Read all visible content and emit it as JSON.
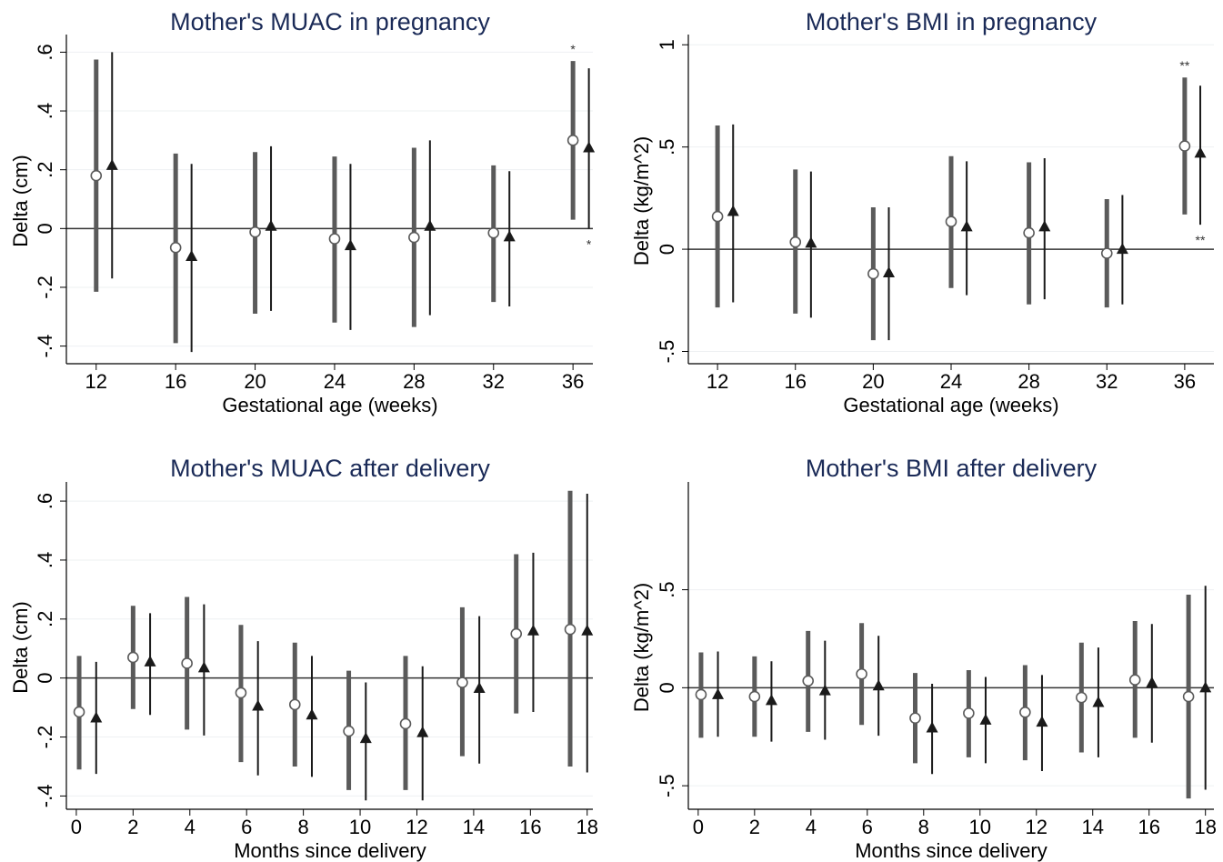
{
  "chart_data": [
    {
      "type": "errorbar",
      "title": "Mother's MUAC in pregnancy",
      "xlabel": "Gestational age (weeks)",
      "ylabel": "Delta (cm)",
      "xlim": [
        10.5,
        37
      ],
      "ylim": [
        -0.46,
        0.66
      ],
      "x_ticks": [
        12,
        16,
        20,
        24,
        28,
        32,
        36
      ],
      "x_tick_labels": [
        "12",
        "16",
        "20",
        "24",
        "28",
        "32",
        "36"
      ],
      "y_ticks": [
        -0.4,
        -0.2,
        0,
        0.2,
        0.4,
        0.6
      ],
      "y_tick_labels": [
        "-.4",
        "-.2",
        "0",
        ".2",
        ".4",
        ".6"
      ],
      "grid": true,
      "series": [
        {
          "marker": "hollow-circle",
          "x": [
            12,
            16,
            20,
            24,
            28,
            32,
            36
          ],
          "y": [
            0.18,
            -0.065,
            -0.012,
            -0.035,
            -0.03,
            -0.015,
            0.3
          ],
          "lo": [
            -0.215,
            -0.39,
            -0.29,
            -0.32,
            -0.335,
            -0.25,
            0.03
          ],
          "hi": [
            0.575,
            0.255,
            0.26,
            0.245,
            0.275,
            0.215,
            0.57
          ],
          "stars": [
            "",
            "",
            "",
            "",
            "",
            "",
            "*"
          ]
        },
        {
          "marker": "filled-triangle",
          "x": [
            12.8,
            16.8,
            20.8,
            24.8,
            28.8,
            32.8,
            36.8
          ],
          "y": [
            0.215,
            -0.095,
            0.008,
            -0.058,
            0.008,
            -0.028,
            0.275
          ],
          "lo": [
            -0.17,
            -0.42,
            -0.28,
            -0.345,
            -0.295,
            -0.265,
            0.0
          ],
          "hi": [
            0.6,
            0.22,
            0.28,
            0.22,
            0.3,
            0.195,
            0.545
          ],
          "stars": [
            "",
            "",
            "",
            "",
            "",
            "",
            "*"
          ]
        }
      ]
    },
    {
      "type": "errorbar",
      "title": "Mother's BMI in pregnancy",
      "xlabel": "Gestational age (weeks)",
      "ylabel": "Delta (kg/m^2)",
      "xlim": [
        10.5,
        37.5
      ],
      "ylim": [
        -0.56,
        1.05
      ],
      "x_ticks": [
        12,
        16,
        20,
        24,
        28,
        32,
        36
      ],
      "x_tick_labels": [
        "12",
        "16",
        "20",
        "24",
        "28",
        "32",
        "36"
      ],
      "y_ticks": [
        -0.5,
        0,
        0.5,
        1
      ],
      "y_tick_labels": [
        "-.5",
        "0",
        ".5",
        "1"
      ],
      "grid": true,
      "series": [
        {
          "marker": "hollow-circle",
          "x": [
            12,
            16,
            20,
            24,
            28,
            32,
            36
          ],
          "y": [
            0.16,
            0.035,
            -0.12,
            0.135,
            0.08,
            -0.02,
            0.505
          ],
          "lo": [
            -0.285,
            -0.315,
            -0.445,
            -0.19,
            -0.27,
            -0.285,
            0.17
          ],
          "hi": [
            0.605,
            0.39,
            0.205,
            0.455,
            0.425,
            0.245,
            0.84
          ],
          "stars": [
            "",
            "",
            "",
            "",
            "",
            "",
            "**"
          ]
        },
        {
          "marker": "filled-triangle",
          "x": [
            12.8,
            16.8,
            20.8,
            24.8,
            28.8,
            32.8,
            36.8
          ],
          "y": [
            0.185,
            0.03,
            -0.115,
            0.11,
            0.11,
            0.0,
            0.47
          ],
          "lo": [
            -0.26,
            -0.335,
            -0.445,
            -0.225,
            -0.245,
            -0.27,
            0.12
          ],
          "hi": [
            0.61,
            0.38,
            0.205,
            0.43,
            0.445,
            0.265,
            0.8
          ],
          "stars": [
            "",
            "",
            "",
            "",
            "",
            "",
            "**"
          ]
        }
      ]
    },
    {
      "type": "errorbar",
      "title": "Mother's MUAC after delivery",
      "xlabel": "Months since delivery",
      "ylabel": "Delta (cm)",
      "xlim": [
        -0.35,
        18.2
      ],
      "ylim": [
        -0.445,
        0.665
      ],
      "x_ticks": [
        0,
        2,
        4,
        6,
        8,
        10,
        12,
        14,
        16,
        18
      ],
      "x_tick_labels": [
        "0",
        "2",
        "4",
        "6",
        "8",
        "10",
        "12",
        "14",
        "16",
        "18"
      ],
      "y_ticks": [
        -0.4,
        -0.2,
        0,
        0.2,
        0.4,
        0.6
      ],
      "y_tick_labels": [
        "-.4",
        "-.2",
        "0",
        ".2",
        ".4",
        ".6"
      ],
      "grid": true,
      "series": [
        {
          "marker": "hollow-circle",
          "x": [
            0.1,
            2.0,
            3.9,
            5.8,
            7.7,
            9.6,
            11.6,
            13.6,
            15.5,
            17.4
          ],
          "y": [
            -0.115,
            0.07,
            0.05,
            -0.05,
            -0.09,
            -0.18,
            -0.155,
            -0.015,
            0.15,
            0.165
          ],
          "lo": [
            -0.31,
            -0.105,
            -0.175,
            -0.285,
            -0.3,
            -0.38,
            -0.38,
            -0.265,
            -0.12,
            -0.3
          ],
          "hi": [
            0.075,
            0.245,
            0.275,
            0.18,
            0.12,
            0.025,
            0.075,
            0.24,
            0.42,
            0.635
          ],
          "stars": [
            "",
            "",
            "",
            "",
            "",
            "",
            "",
            "",
            "",
            ""
          ]
        },
        {
          "marker": "filled-triangle",
          "x": [
            0.7,
            2.6,
            4.5,
            6.4,
            8.3,
            10.2,
            12.2,
            14.2,
            16.1,
            18.0
          ],
          "y": [
            -0.135,
            0.055,
            0.035,
            -0.095,
            -0.125,
            -0.205,
            -0.185,
            -0.035,
            0.16,
            0.16
          ],
          "lo": [
            -0.325,
            -0.125,
            -0.195,
            -0.33,
            -0.335,
            -0.415,
            -0.415,
            -0.29,
            -0.115,
            -0.32
          ],
          "hi": [
            0.055,
            0.22,
            0.25,
            0.125,
            0.075,
            -0.015,
            0.04,
            0.21,
            0.425,
            0.625
          ],
          "stars": [
            "",
            "",
            "",
            "",
            "",
            "",
            "",
            "",
            "",
            ""
          ]
        }
      ]
    },
    {
      "type": "errorbar",
      "title": "Mother's BMI after delivery",
      "xlabel": "Months since delivery",
      "ylabel": "Delta (kg/m^2)",
      "xlim": [
        -0.35,
        18.3
      ],
      "ylim": [
        -0.62,
        1.05
      ],
      "x_ticks": [
        0,
        2,
        4,
        6,
        8,
        10,
        12,
        14,
        16,
        18
      ],
      "x_tick_labels": [
        "0",
        "2",
        "4",
        "6",
        "8",
        "10",
        "12",
        "14",
        "16",
        "18"
      ],
      "y_ticks": [
        -0.5,
        0,
        0.5
      ],
      "y_tick_labels": [
        "-.5",
        "0",
        ".5"
      ],
      "grid": true,
      "series": [
        {
          "marker": "hollow-circle",
          "x": [
            0.1,
            2.0,
            3.9,
            5.8,
            7.7,
            9.6,
            11.6,
            13.6,
            15.5,
            17.4
          ],
          "y": [
            -0.035,
            -0.045,
            0.035,
            0.07,
            -0.155,
            -0.13,
            -0.125,
            -0.05,
            0.04,
            -0.045
          ],
          "lo": [
            -0.255,
            -0.25,
            -0.225,
            -0.19,
            -0.385,
            -0.355,
            -0.37,
            -0.33,
            -0.255,
            -0.565
          ],
          "hi": [
            0.18,
            0.16,
            0.29,
            0.33,
            0.075,
            0.09,
            0.115,
            0.23,
            0.34,
            0.475
          ],
          "stars": [
            "",
            "",
            "",
            "",
            "",
            "",
            "",
            "",
            "",
            ""
          ]
        },
        {
          "marker": "filled-triangle",
          "x": [
            0.7,
            2.6,
            4.5,
            6.4,
            8.3,
            10.2,
            12.2,
            14.2,
            16.1,
            18.0
          ],
          "y": [
            -0.035,
            -0.065,
            -0.015,
            0.01,
            -0.205,
            -0.165,
            -0.175,
            -0.075,
            0.025,
            0.0
          ],
          "lo": [
            -0.25,
            -0.275,
            -0.265,
            -0.245,
            -0.44,
            -0.385,
            -0.425,
            -0.355,
            -0.28,
            -0.52
          ],
          "hi": [
            0.185,
            0.135,
            0.24,
            0.265,
            0.02,
            0.055,
            0.065,
            0.205,
            0.325,
            0.52
          ],
          "stars": [
            "",
            "",
            "",
            "",
            "",
            "",
            "",
            "",
            "",
            ""
          ]
        }
      ]
    }
  ]
}
